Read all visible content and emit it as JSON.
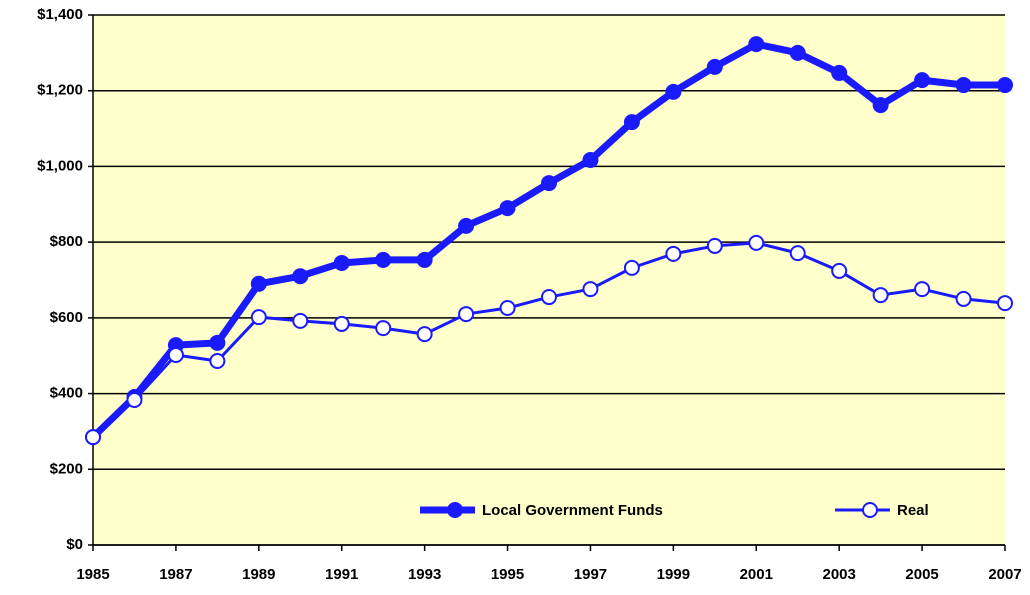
{
  "chart_data": {
    "type": "line",
    "x": [
      1985,
      1986,
      1987,
      1988,
      1989,
      1990,
      1991,
      1992,
      1993,
      1994,
      1995,
      1996,
      1997,
      1998,
      1999,
      2000,
      2001,
      2002,
      2003,
      2004,
      2005,
      2006,
      2007
    ],
    "series": [
      {
        "name": "Local Government Funds",
        "color": "#1a1aff",
        "marker": "filled",
        "values": [
          285,
          391,
          528,
          534,
          690,
          710,
          745,
          753,
          753,
          843,
          890,
          956,
          1017,
          1117,
          1197,
          1263,
          1323,
          1300,
          1247,
          1162,
          1228,
          1215,
          1215
        ]
      },
      {
        "name": "Real",
        "color": "#1a1aff",
        "marker": "open",
        "values": [
          285,
          383,
          502,
          486,
          602,
          592,
          584,
          573,
          557,
          610,
          626,
          655,
          676,
          732,
          769,
          790,
          798,
          771,
          724,
          660,
          676,
          650,
          639
        ]
      }
    ],
    "xlim": [
      1985,
      2007
    ],
    "xticks": [
      1985,
      1987,
      1989,
      1991,
      1993,
      1995,
      1997,
      1999,
      2001,
      2003,
      2005,
      2007
    ],
    "ylim": [
      0,
      1400
    ],
    "yticks": [
      {
        "value": 0,
        "label": "$0"
      },
      {
        "value": 200,
        "label": "$200"
      },
      {
        "value": 400,
        "label": "$400"
      },
      {
        "value": 600,
        "label": "$600"
      },
      {
        "value": 800,
        "label": "$800"
      },
      {
        "value": 1000,
        "label": "$1,000"
      },
      {
        "value": 1200,
        "label": "$1,200"
      },
      {
        "value": 1400,
        "label": "$1,400"
      }
    ],
    "grid": true,
    "legend": "bottom",
    "plot_background": "#ffffcc"
  }
}
